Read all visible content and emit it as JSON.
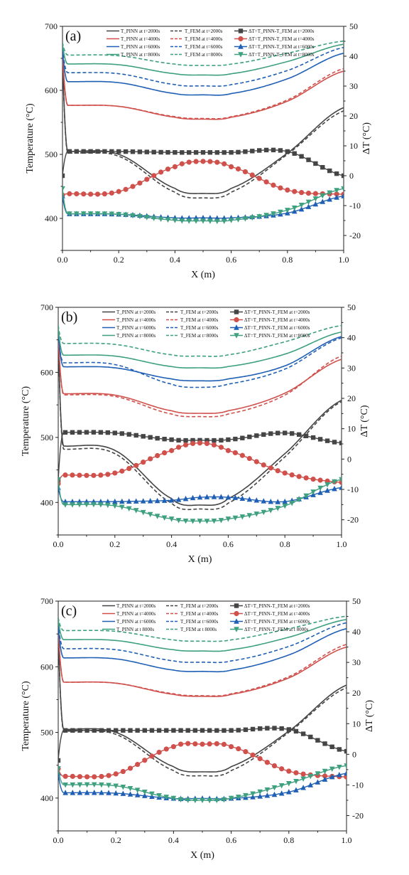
{
  "x_ticks": [
    "0.0",
    "0.2",
    "0.4",
    "0.6",
    "0.8",
    "1.0"
  ],
  "y_left_ticks": [
    "400",
    "500",
    "600",
    "700"
  ],
  "y_right_ticks": [
    "-20",
    "-10",
    "0",
    "10",
    "20",
    "30",
    "40",
    "50"
  ],
  "colors": {
    "t2000": "#454545",
    "t4000": "#d0504c",
    "t6000": "#1f5fb4",
    "t8000": "#3ea07f"
  },
  "chart_data": [
    {
      "type": "line",
      "panel_label": "(a)",
      "xlabel": "X (m)",
      "ylabel": "Temperature (°C)",
      "ylabel_right": "ΔT (°C)",
      "xlim": [
        0,
        1
      ],
      "ylim": [
        350,
        700
      ],
      "ylim_right": [
        -25,
        50
      ],
      "legend": [
        [
          "T_PINN at t=2000s",
          "T_FEM at t=2000s",
          "ΔT=T_PINN-T_FEM at t=2000s"
        ],
        [
          "T_PINN at t=4000s",
          "T_FEM at t=4000s",
          "ΔT=T_PINN-T_FEM at t=4000s"
        ],
        [
          "T_PINN at t=6000s",
          "T_FEM at t=6000s",
          "ΔT=T_PINN-T_FEM at t=6000s"
        ],
        [
          "T_PINN at t=8000s",
          "T_FEM at t=8000s",
          "ΔT=T_PINN-T_FEM at t=8000s"
        ]
      ],
      "x": [
        0,
        0.2,
        0.4,
        0.5,
        0.6,
        0.8,
        1.0
      ],
      "series": [
        {
          "time": "t2000",
          "kind": "pinn",
          "values": [
            660,
            500,
            447,
            439,
            447,
            502,
            573
          ]
        },
        {
          "time": "t2000",
          "kind": "fem",
          "values": [
            660,
            497,
            441,
            432,
            441,
            500,
            568
          ]
        },
        {
          "time": "t4000",
          "kind": "pinn",
          "values": [
            660,
            575,
            558,
            555,
            558,
            583,
            630
          ]
        },
        {
          "time": "t4000",
          "kind": "fem",
          "values": [
            660,
            575,
            559,
            556,
            559,
            585,
            634
          ]
        },
        {
          "time": "t6000",
          "kind": "pinn",
          "values": [
            663,
            612,
            595,
            593,
            595,
            618,
            658
          ]
        },
        {
          "time": "t6000",
          "kind": "fem",
          "values": [
            665,
            626,
            609,
            607,
            609,
            631,
            667
          ]
        },
        {
          "time": "t8000",
          "kind": "pinn",
          "values": [
            672,
            640,
            626,
            624,
            626,
            645,
            672
          ]
        },
        {
          "time": "t8000",
          "kind": "fem",
          "values": [
            675,
            654,
            641,
            639,
            641,
            658,
            677
          ]
        },
        {
          "time": "t2000",
          "kind": "delta",
          "values": [
            0,
            8.1,
            7.8,
            7.8,
            7.8,
            8.1,
            0
          ]
        },
        {
          "time": "t4000",
          "kind": "delta",
          "values": [
            -6.5,
            -5.3,
            3.0,
            4.8,
            3.0,
            -4.8,
            -6.2
          ]
        },
        {
          "time": "t6000",
          "kind": "delta",
          "values": [
            -6.8,
            -12.9,
            -14.1,
            -14.1,
            -14.1,
            -12.5,
            -6.8
          ]
        },
        {
          "time": "t8000",
          "kind": "delta",
          "values": [
            -4.3,
            -12.9,
            -14.9,
            -15.1,
            -14.9,
            -11.5,
            -4.3
          ]
        }
      ]
    },
    {
      "type": "line",
      "panel_label": "(b)",
      "xlabel": "X (m)",
      "ylabel": "Temperature (°C)",
      "ylabel_right": "ΔT (°C)",
      "xlim": [
        0,
        1
      ],
      "ylim": [
        350,
        700
      ],
      "ylim_right": [
        -25,
        50
      ],
      "legend": [
        [
          "T_PINN at t=2000s",
          "T_FEM at t=2000s",
          "ΔT=T_PINN-T_FEM at t=2000s"
        ],
        [
          "T_PINN at t=4000s",
          "T_FEM at t=4000s",
          "ΔT=T_PINN-T_FEM at t=4000s"
        ],
        [
          "T_PINN at t=6000s",
          "T_FEM at t=6000s",
          "ΔT=T_PINN-T_FEM at t=6000s"
        ],
        [
          "T_PINN at t=8000s",
          "T_FEM at t=8000s",
          "ΔT=T_PINN-T_FEM at t=8000s"
        ]
      ],
      "x": [
        0,
        0.2,
        0.4,
        0.5,
        0.6,
        0.8,
        1.0
      ],
      "series": [
        {
          "time": "t2000",
          "kind": "pinn",
          "values": [
            660,
            480,
            406,
            396,
            406,
            475,
            557
          ]
        },
        {
          "time": "t2000",
          "kind": "fem",
          "values": [
            660,
            475,
            399,
            390,
            399,
            470,
            555
          ]
        },
        {
          "time": "t4000",
          "kind": "pinn",
          "values": [
            660,
            565,
            541,
            537,
            541,
            568,
            620
          ]
        },
        {
          "time": "t4000",
          "kind": "fem",
          "values": [
            660,
            563,
            536,
            532,
            536,
            565,
            625
          ]
        },
        {
          "time": "t6000",
          "kind": "pinn",
          "values": [
            663,
            607,
            590,
            587,
            590,
            610,
            655
          ]
        },
        {
          "time": "t6000",
          "kind": "fem",
          "values": [
            658,
            612,
            582,
            577,
            582,
            605,
            653
          ]
        },
        {
          "time": "t8000",
          "kind": "pinn",
          "values": [
            668,
            625,
            609,
            607,
            609,
            628,
            662
          ]
        },
        {
          "time": "t8000",
          "kind": "fem",
          "values": [
            672,
            643,
            627,
            625,
            627,
            647,
            672
          ]
        },
        {
          "time": "t2000",
          "kind": "delta",
          "values": [
            -7,
            8.6,
            6.4,
            6.2,
            6.4,
            8.6,
            5.3
          ]
        },
        {
          "time": "t4000",
          "kind": "delta",
          "values": [
            -8.1,
            -4.6,
            2.8,
            5.3,
            2.8,
            -4.6,
            -7.7
          ]
        },
        {
          "time": "t6000",
          "kind": "delta",
          "values": [
            -9.4,
            -14.0,
            -13.6,
            -12.6,
            -12.6,
            -14.0,
            -9.4
          ]
        },
        {
          "time": "t8000",
          "kind": "delta",
          "values": [
            -6.7,
            -15.4,
            -19.7,
            -20.4,
            -19.7,
            -15.4,
            -6.7
          ]
        }
      ]
    },
    {
      "type": "line",
      "panel_label": "(c)",
      "xlabel": "X (m)",
      "ylabel": "Temperature (°C)",
      "ylabel_right": "ΔT (°C)",
      "xlim": [
        0,
        1
      ],
      "ylim": [
        350,
        700
      ],
      "ylim_right": [
        -25,
        50
      ],
      "legend": [
        [
          "T_PINN at t=2000s",
          "T_FEM at t=2000s",
          "ΔT=T_PINN-T_FEM at t=2000s"
        ],
        [
          "T_PINN at t=4000s",
          "T_FEM at t=4000s",
          "ΔT=T_PINN-T_FEM at t=4000s"
        ],
        [
          "T_PINN at t=6000s",
          "T_FEM at t=6000s",
          "ΔT=T_PINN-T_FEM at t=6000s"
        ],
        [
          "T_PINN at t 8000s",
          "T_FEM at t 8000s",
          "ΔT=T_PINN-T_FEM at t 8000s"
        ]
      ],
      "x": [
        0,
        0.2,
        0.4,
        0.5,
        0.6,
        0.8,
        1.0
      ],
      "series": [
        {
          "time": "t2000",
          "kind": "pinn",
          "values": [
            660,
            500,
            448,
            440,
            448,
            502,
            572
          ]
        },
        {
          "time": "t2000",
          "kind": "fem",
          "values": [
            660,
            497,
            442,
            434,
            442,
            500,
            568
          ]
        },
        {
          "time": "t4000",
          "kind": "pinn",
          "values": [
            660,
            575,
            558,
            555,
            558,
            583,
            630
          ]
        },
        {
          "time": "t4000",
          "kind": "fem",
          "values": [
            660,
            575,
            559,
            556,
            559,
            585,
            634
          ]
        },
        {
          "time": "t6000",
          "kind": "pinn",
          "values": [
            663,
            612,
            595,
            593,
            595,
            618,
            658
          ]
        },
        {
          "time": "t6000",
          "kind": "fem",
          "values": [
            665,
            626,
            609,
            607,
            609,
            631,
            667
          ]
        },
        {
          "time": "t8000",
          "kind": "pinn",
          "values": [
            672,
            640,
            626,
            624,
            626,
            645,
            672
          ]
        },
        {
          "time": "t8000",
          "kind": "fem",
          "values": [
            675,
            654,
            641,
            639,
            641,
            658,
            677
          ]
        },
        {
          "time": "t2000",
          "kind": "delta",
          "values": [
            -2,
            7.8,
            7.8,
            7.8,
            7.8,
            8.1,
            1
          ]
        },
        {
          "time": "t4000",
          "kind": "delta",
          "values": [
            -4.7,
            -6.4,
            2.5,
            3.3,
            2.5,
            -5.5,
            -7.4
          ]
        },
        {
          "time": "t6000",
          "kind": "delta",
          "values": [
            -6.2,
            -12.7,
            -14.4,
            -14.4,
            -14.4,
            -12.3,
            -6.2
          ]
        },
        {
          "time": "t8000",
          "kind": "delta",
          "values": [
            -4.6,
            -10.3,
            -14.3,
            -15.0,
            -14.3,
            -9.5,
            -3.7
          ]
        }
      ]
    }
  ]
}
